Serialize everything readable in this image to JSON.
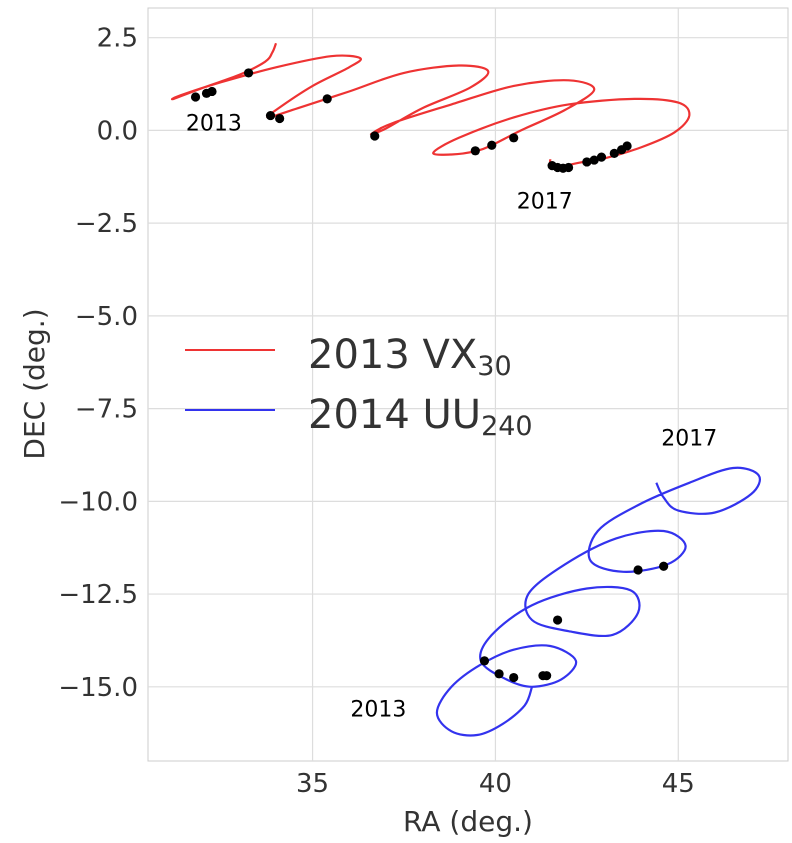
{
  "chart_data": {
    "type": "line",
    "xlabel": "RA (deg.)",
    "ylabel": "DEC (deg.)",
    "xlim": [
      30.5,
      48
    ],
    "ylim": [
      -17,
      3.3
    ],
    "grid": true,
    "legend_position": "center-left",
    "x_ticks": [
      35,
      40,
      45
    ],
    "x_tick_labels": [
      "35",
      "40",
      "45"
    ],
    "y_ticks": [
      2.5,
      0.0,
      -2.5,
      -5.0,
      -7.5,
      -10.0,
      -12.5,
      -15.0
    ],
    "y_tick_labels": [
      "2.5",
      "0.0",
      "−2.5",
      "−5.0",
      "−7.5",
      "−10.0",
      "−12.5",
      "−15.0"
    ],
    "colors": {
      "vx30": "#ee3333",
      "uu240": "#3333ee",
      "points": "#000000"
    },
    "series": [
      {
        "name_main": "2013 VX",
        "name_sub": "30",
        "color": "#ee3333",
        "track": [
          [
            34.0,
            2.35
          ],
          [
            33.9,
            2.1
          ],
          [
            33.7,
            1.85
          ],
          [
            33.0,
            1.5
          ],
          [
            32.0,
            1.15
          ],
          [
            31.2,
            0.85
          ],
          [
            31.4,
            0.95
          ],
          [
            32.5,
            1.3
          ],
          [
            34.0,
            1.7
          ],
          [
            35.5,
            2.0
          ],
          [
            36.3,
            1.95
          ],
          [
            36.0,
            1.7
          ],
          [
            35.0,
            1.2
          ],
          [
            34.0,
            0.55
          ],
          [
            33.8,
            0.35
          ],
          [
            34.6,
            0.6
          ],
          [
            36.0,
            1.05
          ],
          [
            37.5,
            1.55
          ],
          [
            39.0,
            1.75
          ],
          [
            39.8,
            1.6
          ],
          [
            39.3,
            1.15
          ],
          [
            38.0,
            0.6
          ],
          [
            37.0,
            0.05
          ],
          [
            36.6,
            -0.1
          ],
          [
            37.2,
            0.2
          ],
          [
            38.8,
            0.7
          ],
          [
            40.5,
            1.2
          ],
          [
            42.0,
            1.35
          ],
          [
            42.7,
            1.1
          ],
          [
            41.9,
            0.55
          ],
          [
            40.7,
            0.0
          ],
          [
            39.9,
            -0.4
          ],
          [
            39.5,
            -0.55
          ],
          [
            38.8,
            -0.65
          ],
          [
            38.3,
            -0.6
          ],
          [
            39.0,
            -0.2
          ],
          [
            40.5,
            0.35
          ],
          [
            42.0,
            0.7
          ],
          [
            43.8,
            0.85
          ],
          [
            45.0,
            0.75
          ],
          [
            45.3,
            0.4
          ],
          [
            44.9,
            -0.05
          ],
          [
            44.0,
            -0.45
          ],
          [
            43.0,
            -0.75
          ],
          [
            42.4,
            -0.85
          ],
          [
            41.9,
            -0.95
          ],
          [
            41.6,
            -1.0
          ],
          [
            41.5,
            -0.9
          ],
          [
            41.5,
            -0.78
          ]
        ],
        "points": [
          [
            31.8,
            0.9
          ],
          [
            32.1,
            1.0
          ],
          [
            32.25,
            1.05
          ],
          [
            33.25,
            1.55
          ],
          [
            33.85,
            0.4
          ],
          [
            34.1,
            0.32
          ],
          [
            35.4,
            0.85
          ],
          [
            36.7,
            -0.15
          ],
          [
            39.45,
            -0.55
          ],
          [
            39.9,
            -0.4
          ],
          [
            40.5,
            -0.2
          ],
          [
            41.55,
            -0.95
          ],
          [
            41.7,
            -1.0
          ],
          [
            41.85,
            -1.02
          ],
          [
            42.0,
            -1.0
          ],
          [
            42.5,
            -0.85
          ],
          [
            42.7,
            -0.8
          ],
          [
            42.9,
            -0.72
          ],
          [
            43.25,
            -0.62
          ],
          [
            43.45,
            -0.52
          ],
          [
            43.6,
            -0.42
          ]
        ]
      },
      {
        "name_main": "2014 UU",
        "name_sub": "240",
        "color": "#3333ee",
        "track": [
          [
            41.0,
            -15.0
          ],
          [
            40.8,
            -15.5
          ],
          [
            40.2,
            -16.0
          ],
          [
            39.5,
            -16.3
          ],
          [
            38.8,
            -16.2
          ],
          [
            38.4,
            -15.7
          ],
          [
            38.8,
            -15.0
          ],
          [
            39.6,
            -14.4
          ],
          [
            40.5,
            -14.0
          ],
          [
            41.5,
            -13.9
          ],
          [
            42.2,
            -14.3
          ],
          [
            41.8,
            -14.8
          ],
          [
            41.0,
            -15.0
          ],
          [
            40.3,
            -14.8
          ],
          [
            39.6,
            -14.3
          ],
          [
            39.9,
            -13.6
          ],
          [
            41.0,
            -12.8
          ],
          [
            42.5,
            -12.35
          ],
          [
            43.7,
            -12.4
          ],
          [
            43.9,
            -13.0
          ],
          [
            43.2,
            -13.6
          ],
          [
            42.0,
            -13.5
          ],
          [
            41.0,
            -13.2
          ],
          [
            40.9,
            -12.5
          ],
          [
            41.9,
            -11.7
          ],
          [
            43.3,
            -11.0
          ],
          [
            44.6,
            -10.8
          ],
          [
            45.2,
            -11.2
          ],
          [
            44.7,
            -11.7
          ],
          [
            43.5,
            -11.9
          ],
          [
            42.6,
            -11.6
          ],
          [
            42.8,
            -10.8
          ],
          [
            43.9,
            -10.1
          ],
          [
            45.3,
            -9.5
          ],
          [
            46.5,
            -9.1
          ],
          [
            47.2,
            -9.3
          ],
          [
            47.0,
            -9.8
          ],
          [
            46.0,
            -10.3
          ],
          [
            45.0,
            -10.25
          ],
          [
            44.6,
            -9.9
          ],
          [
            44.4,
            -9.5
          ]
        ],
        "points": [
          [
            39.7,
            -14.3
          ],
          [
            40.1,
            -14.65
          ],
          [
            40.5,
            -14.75
          ],
          [
            41.3,
            -14.7
          ],
          [
            41.4,
            -14.7
          ],
          [
            41.7,
            -13.2
          ],
          [
            43.9,
            -11.85
          ],
          [
            44.6,
            -11.75
          ]
        ]
      }
    ],
    "annotations": [
      {
        "text": "2013",
        "x": 32.3,
        "y": 0.0
      },
      {
        "text": "2017",
        "x": 41.35,
        "y": -2.1
      },
      {
        "text": "2017",
        "x": 45.3,
        "y": -8.5
      },
      {
        "text": "2013",
        "x": 36.8,
        "y": -15.8
      }
    ]
  }
}
